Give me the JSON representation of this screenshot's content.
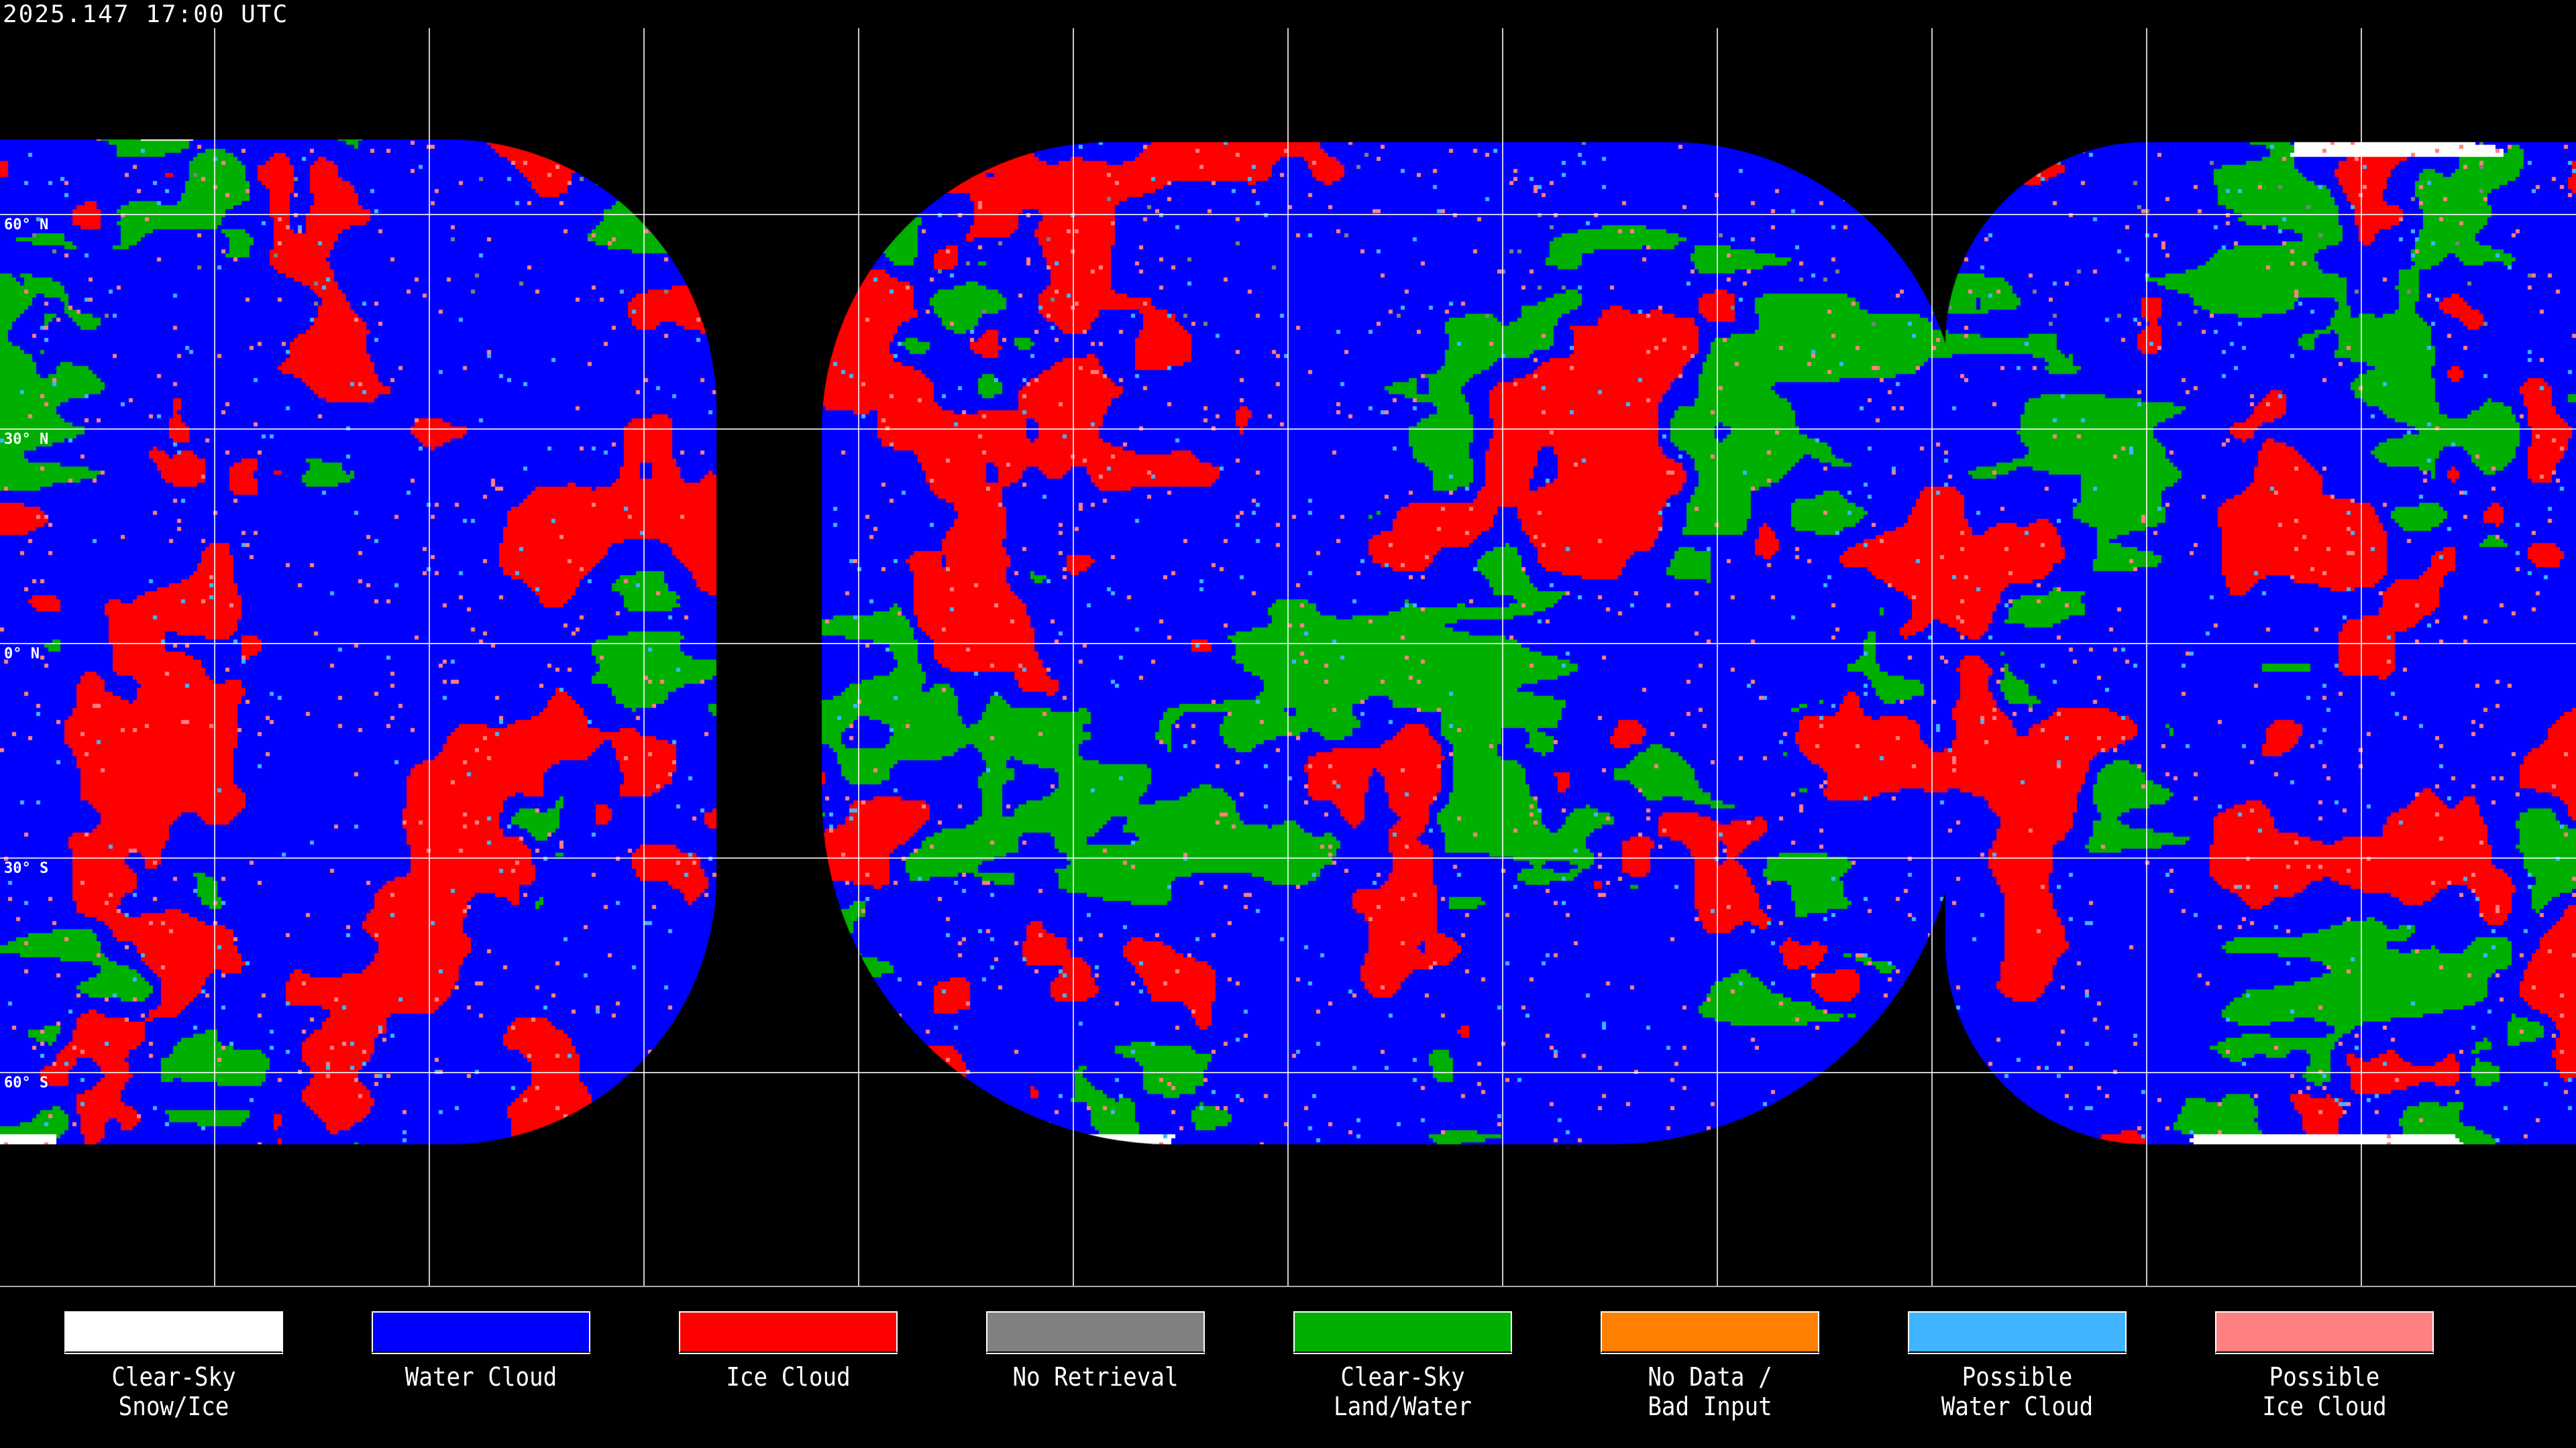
{
  "header": {
    "timestamp": "2025.147 17:00 UTC"
  },
  "map": {
    "projection": "equirectangular",
    "background": "#000000",
    "grid_color": "#ffffff",
    "coastline_color": "#ffffff",
    "lat_labels": [
      "60° N",
      "30° N",
      "0° N",
      "30° S",
      "60° S"
    ],
    "grid_lat_step_deg": 30,
    "grid_lon_step_deg": 30
  },
  "legend": {
    "items": [
      {
        "label": "Clear-Sky\nSnow/Ice",
        "color": "#ffffff"
      },
      {
        "label": "Water Cloud",
        "color": "#0000ff"
      },
      {
        "label": "Ice Cloud",
        "color": "#ff0000"
      },
      {
        "label": "No Retrieval",
        "color": "#808080"
      },
      {
        "label": "Clear-Sky\nLand/Water",
        "color": "#00b000"
      },
      {
        "label": "No Data /\nBad Input",
        "color": "#ff8000"
      },
      {
        "label": "Possible\nWater Cloud",
        "color": "#40b4ff"
      },
      {
        "label": "Possible\nIce Cloud",
        "color": "#ff8080"
      }
    ]
  }
}
